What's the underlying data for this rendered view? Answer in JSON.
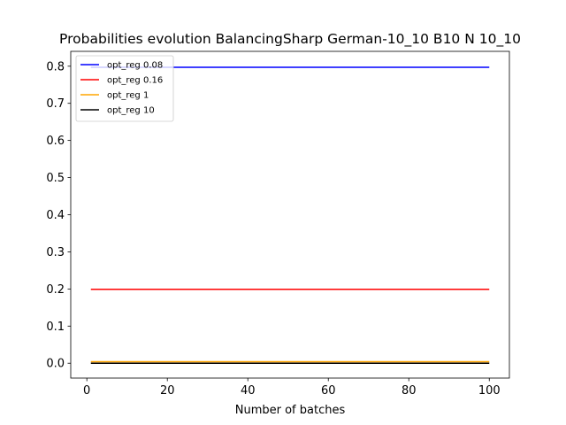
{
  "chart_data": {
    "type": "line",
    "title": "Probabilities evolution BalancingSharp German-10_10 B10 N 10_10",
    "xlabel": "Number of batches",
    "ylabel": "",
    "xlim": [
      -4,
      105
    ],
    "ylim": [
      -0.04,
      0.84
    ],
    "xticks": [
      0,
      20,
      40,
      60,
      80,
      100
    ],
    "yticks": [
      0.0,
      0.1,
      0.2,
      0.3,
      0.4,
      0.5,
      0.6,
      0.7,
      0.8
    ],
    "x": [
      1,
      100
    ],
    "series": [
      {
        "name": "opt_reg 0.08",
        "color": "#0000ff",
        "values": [
          0.797,
          0.797
        ]
      },
      {
        "name": "opt_reg 0.16",
        "color": "#ff0000",
        "values": [
          0.199,
          0.199
        ]
      },
      {
        "name": "opt_reg 1",
        "color": "#ffa500",
        "values": [
          0.004,
          0.004
        ]
      },
      {
        "name": "opt_reg 10",
        "color": "#000000",
        "values": [
          0.0,
          0.0
        ]
      }
    ],
    "legend": "top-left",
    "grid": false
  }
}
